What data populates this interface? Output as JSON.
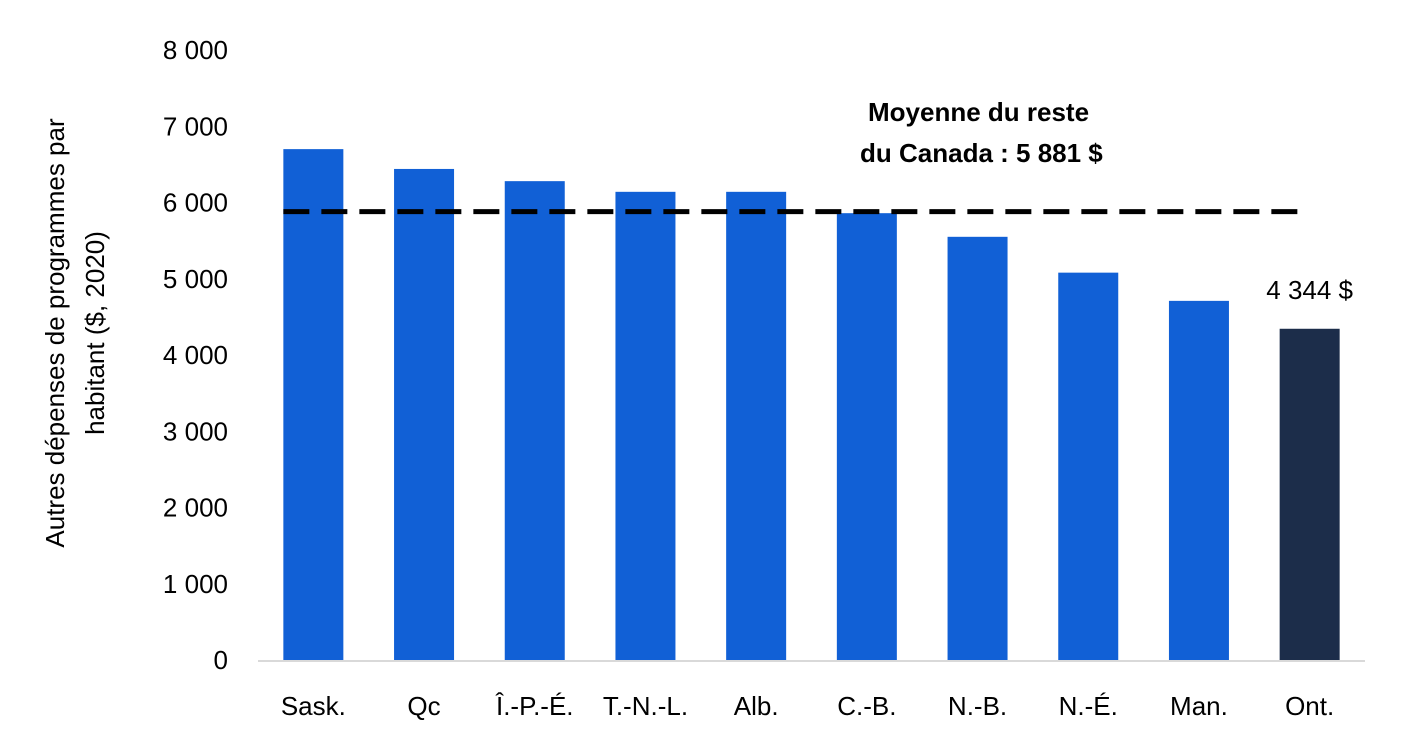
{
  "chart_data": {
    "type": "bar",
    "ylabel_lines": [
      "Autres dépenses de programmes par",
      "habitant ($, 2020)"
    ],
    "categories": [
      "Sask.",
      "Qc",
      "Î.-P.-É.",
      "T.-N.-L.",
      "Alb.",
      "C.-B.",
      "N.-B.",
      "N.-É.",
      "Man.",
      "Ont."
    ],
    "values": [
      6700,
      6440,
      6280,
      6140,
      6140,
      5860,
      5550,
      5080,
      4710,
      4344
    ],
    "ylim": [
      0,
      8000
    ],
    "yticks": [
      {
        "value": 0,
        "label": "0"
      },
      {
        "value": 1000,
        "label": "1 000"
      },
      {
        "value": 2000,
        "label": "2 000"
      },
      {
        "value": 3000,
        "label": "3 000"
      },
      {
        "value": 4000,
        "label": "4 000"
      },
      {
        "value": 5000,
        "label": "5 000"
      },
      {
        "value": 6000,
        "label": "6 000"
      },
      {
        "value": 7000,
        "label": "7 000"
      },
      {
        "value": 8000,
        "label": "8 000"
      }
    ],
    "grid": false,
    "colors": {
      "default_bar": "#1160d6",
      "highlight_bar": "#1c2d4a",
      "average_line": "#000000"
    },
    "highlight_index": 9,
    "data_label": {
      "index": 9,
      "text": "4 344 $"
    },
    "average_line": {
      "value": 5881,
      "label_lines": [
        "Moyenne du reste",
        "du Canada : 5 881 $"
      ]
    }
  }
}
